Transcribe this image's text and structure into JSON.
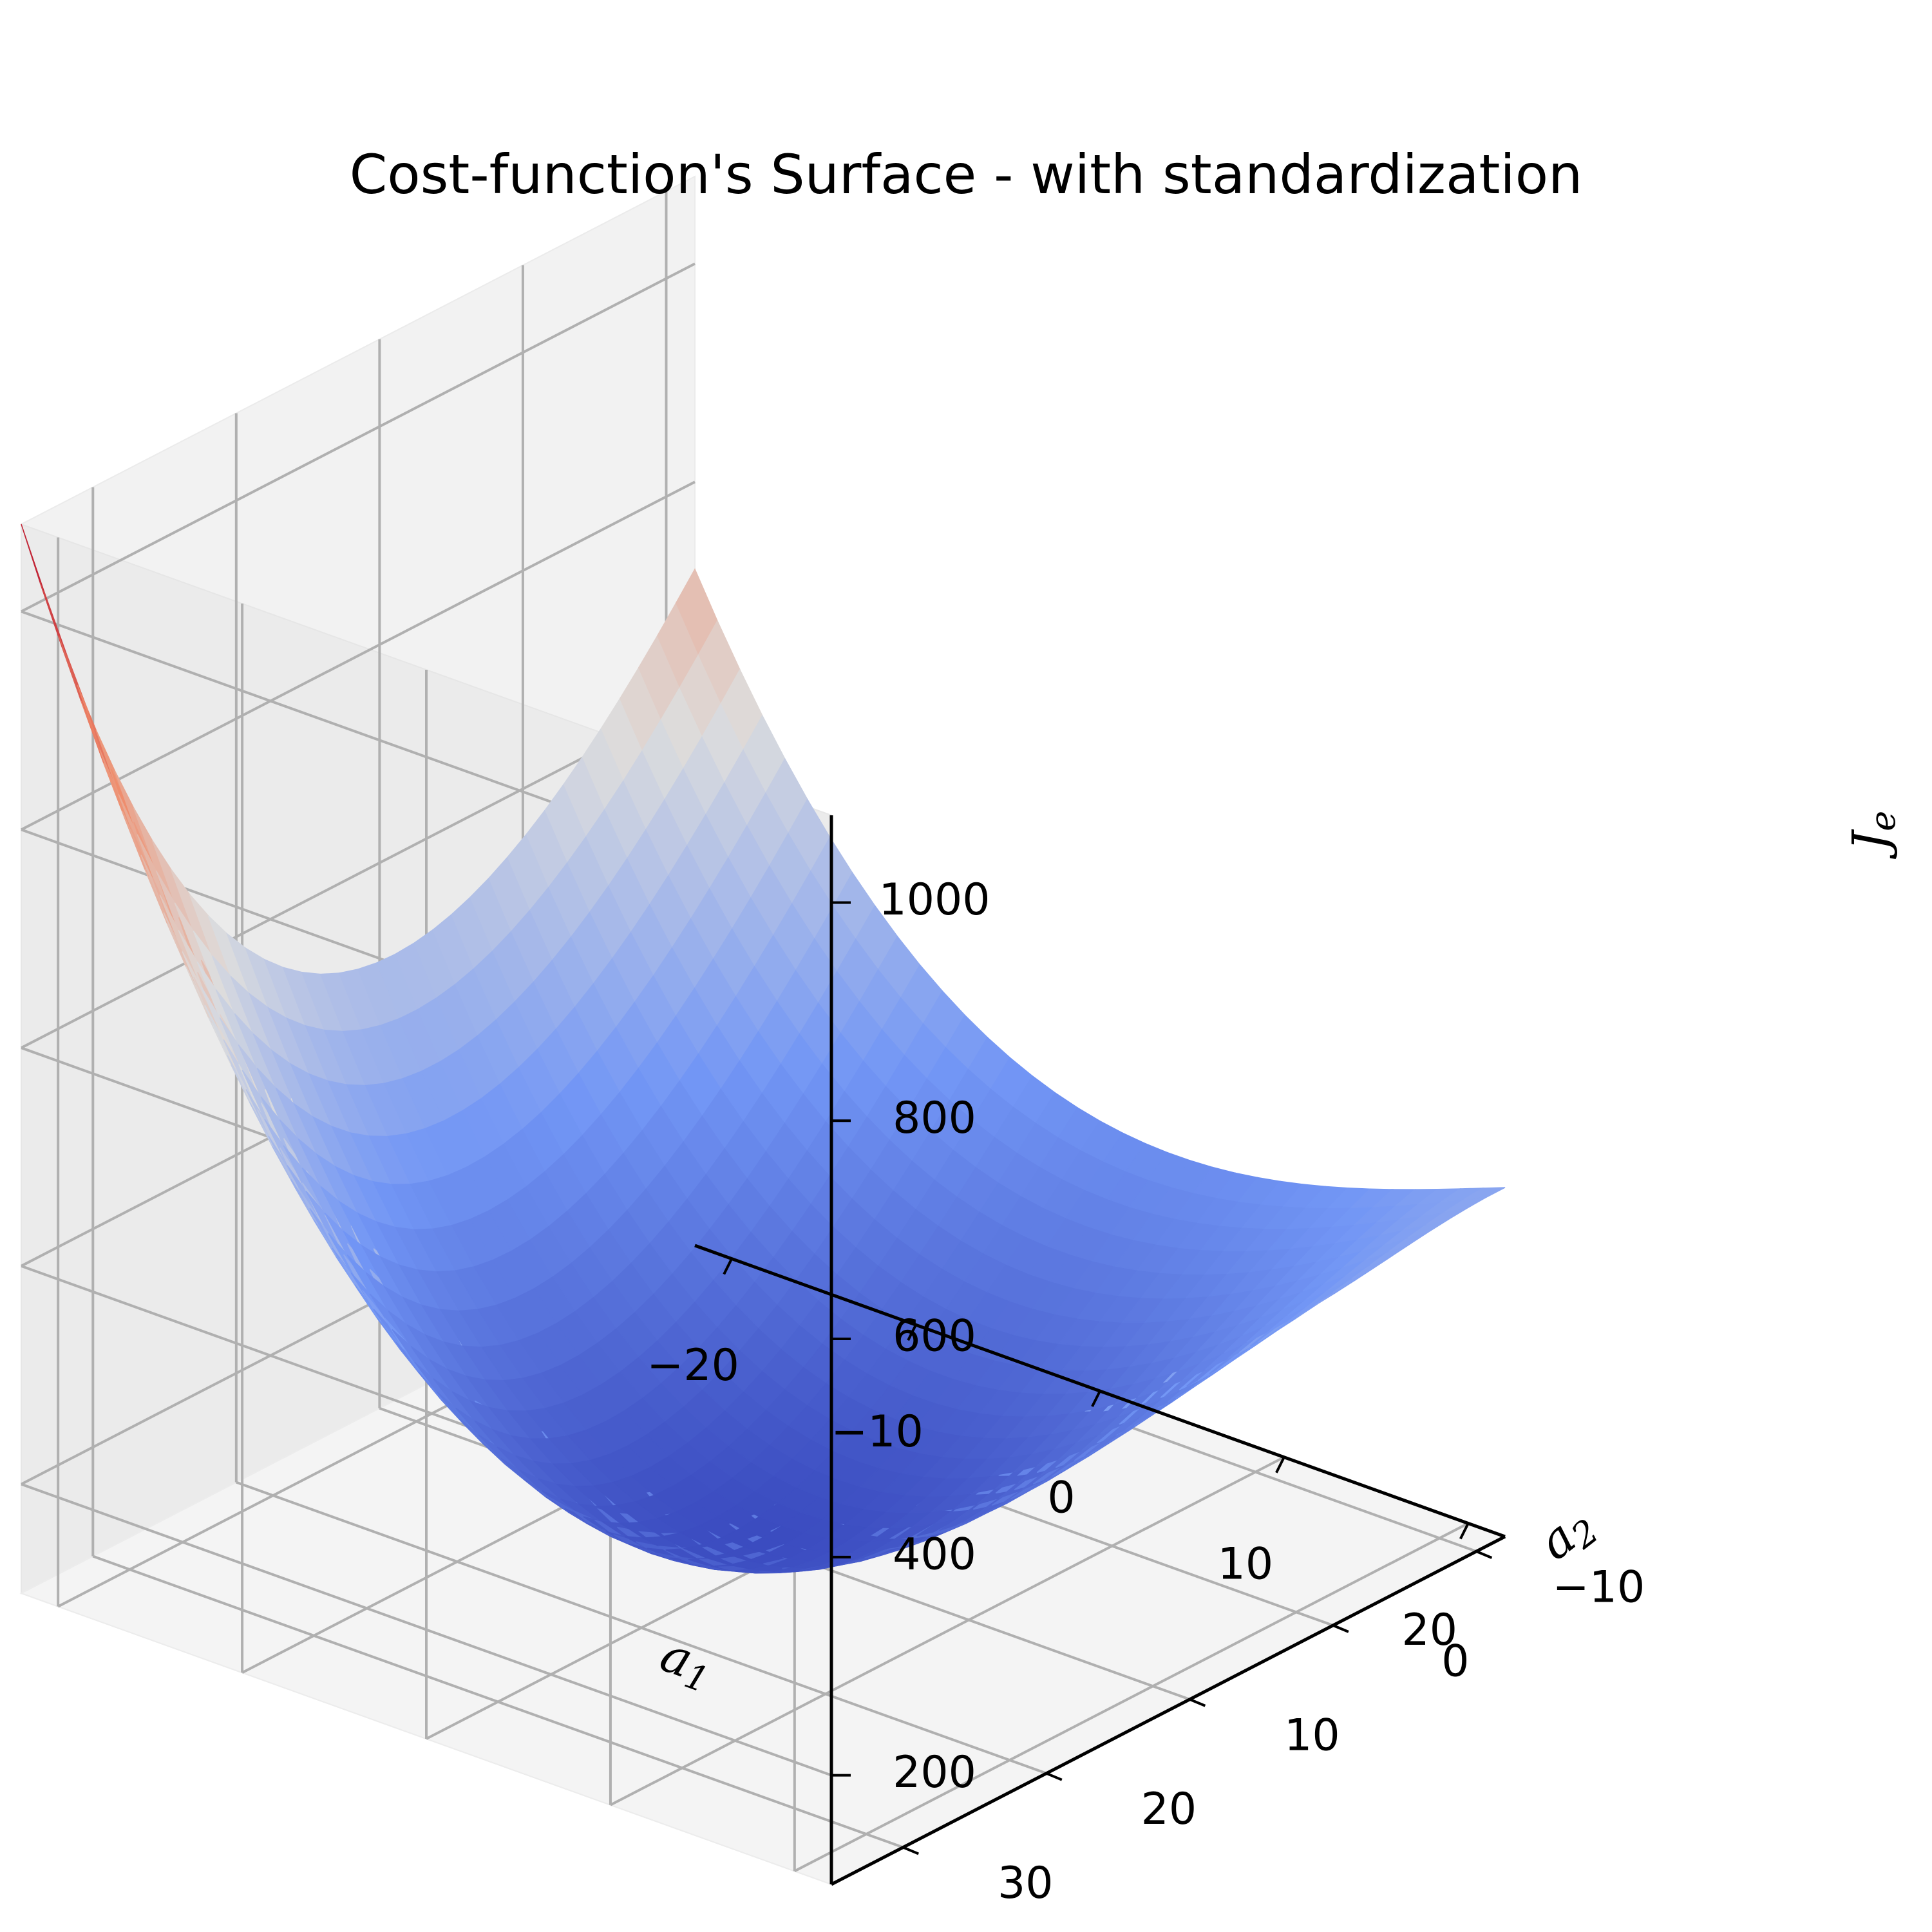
{
  "chart_data": {
    "type": "surface",
    "title": "Cost-function's Surface - with standardization",
    "xlabel": "a1",
    "ylabel": "a2",
    "zlabel": "Je",
    "x_ticks": [
      "−20",
      "−10",
      "0",
      "10",
      "20"
    ],
    "y_ticks": [
      "−10",
      "0",
      "10",
      "20",
      "30"
    ],
    "z_ticks": [
      "200",
      "400",
      "600",
      "800",
      "1000"
    ],
    "x_range": [
      -22,
      22
    ],
    "y_range": [
      -12,
      35
    ],
    "z_range": [
      100,
      1080
    ],
    "surface": {
      "function": "quadratic bowl",
      "center": [
        0,
        12
      ],
      "minimum": 125,
      "corner_values": {
        "x-22_y-12": 720,
        "x-22_y35": 1080,
        "x22_y-12": 420,
        "x22_y35": 1010
      }
    },
    "colormap": "coolwarm",
    "colors": {
      "low": "#3b4cc0",
      "mid": "#dddddd",
      "high": "#b40426"
    },
    "grid": true
  }
}
